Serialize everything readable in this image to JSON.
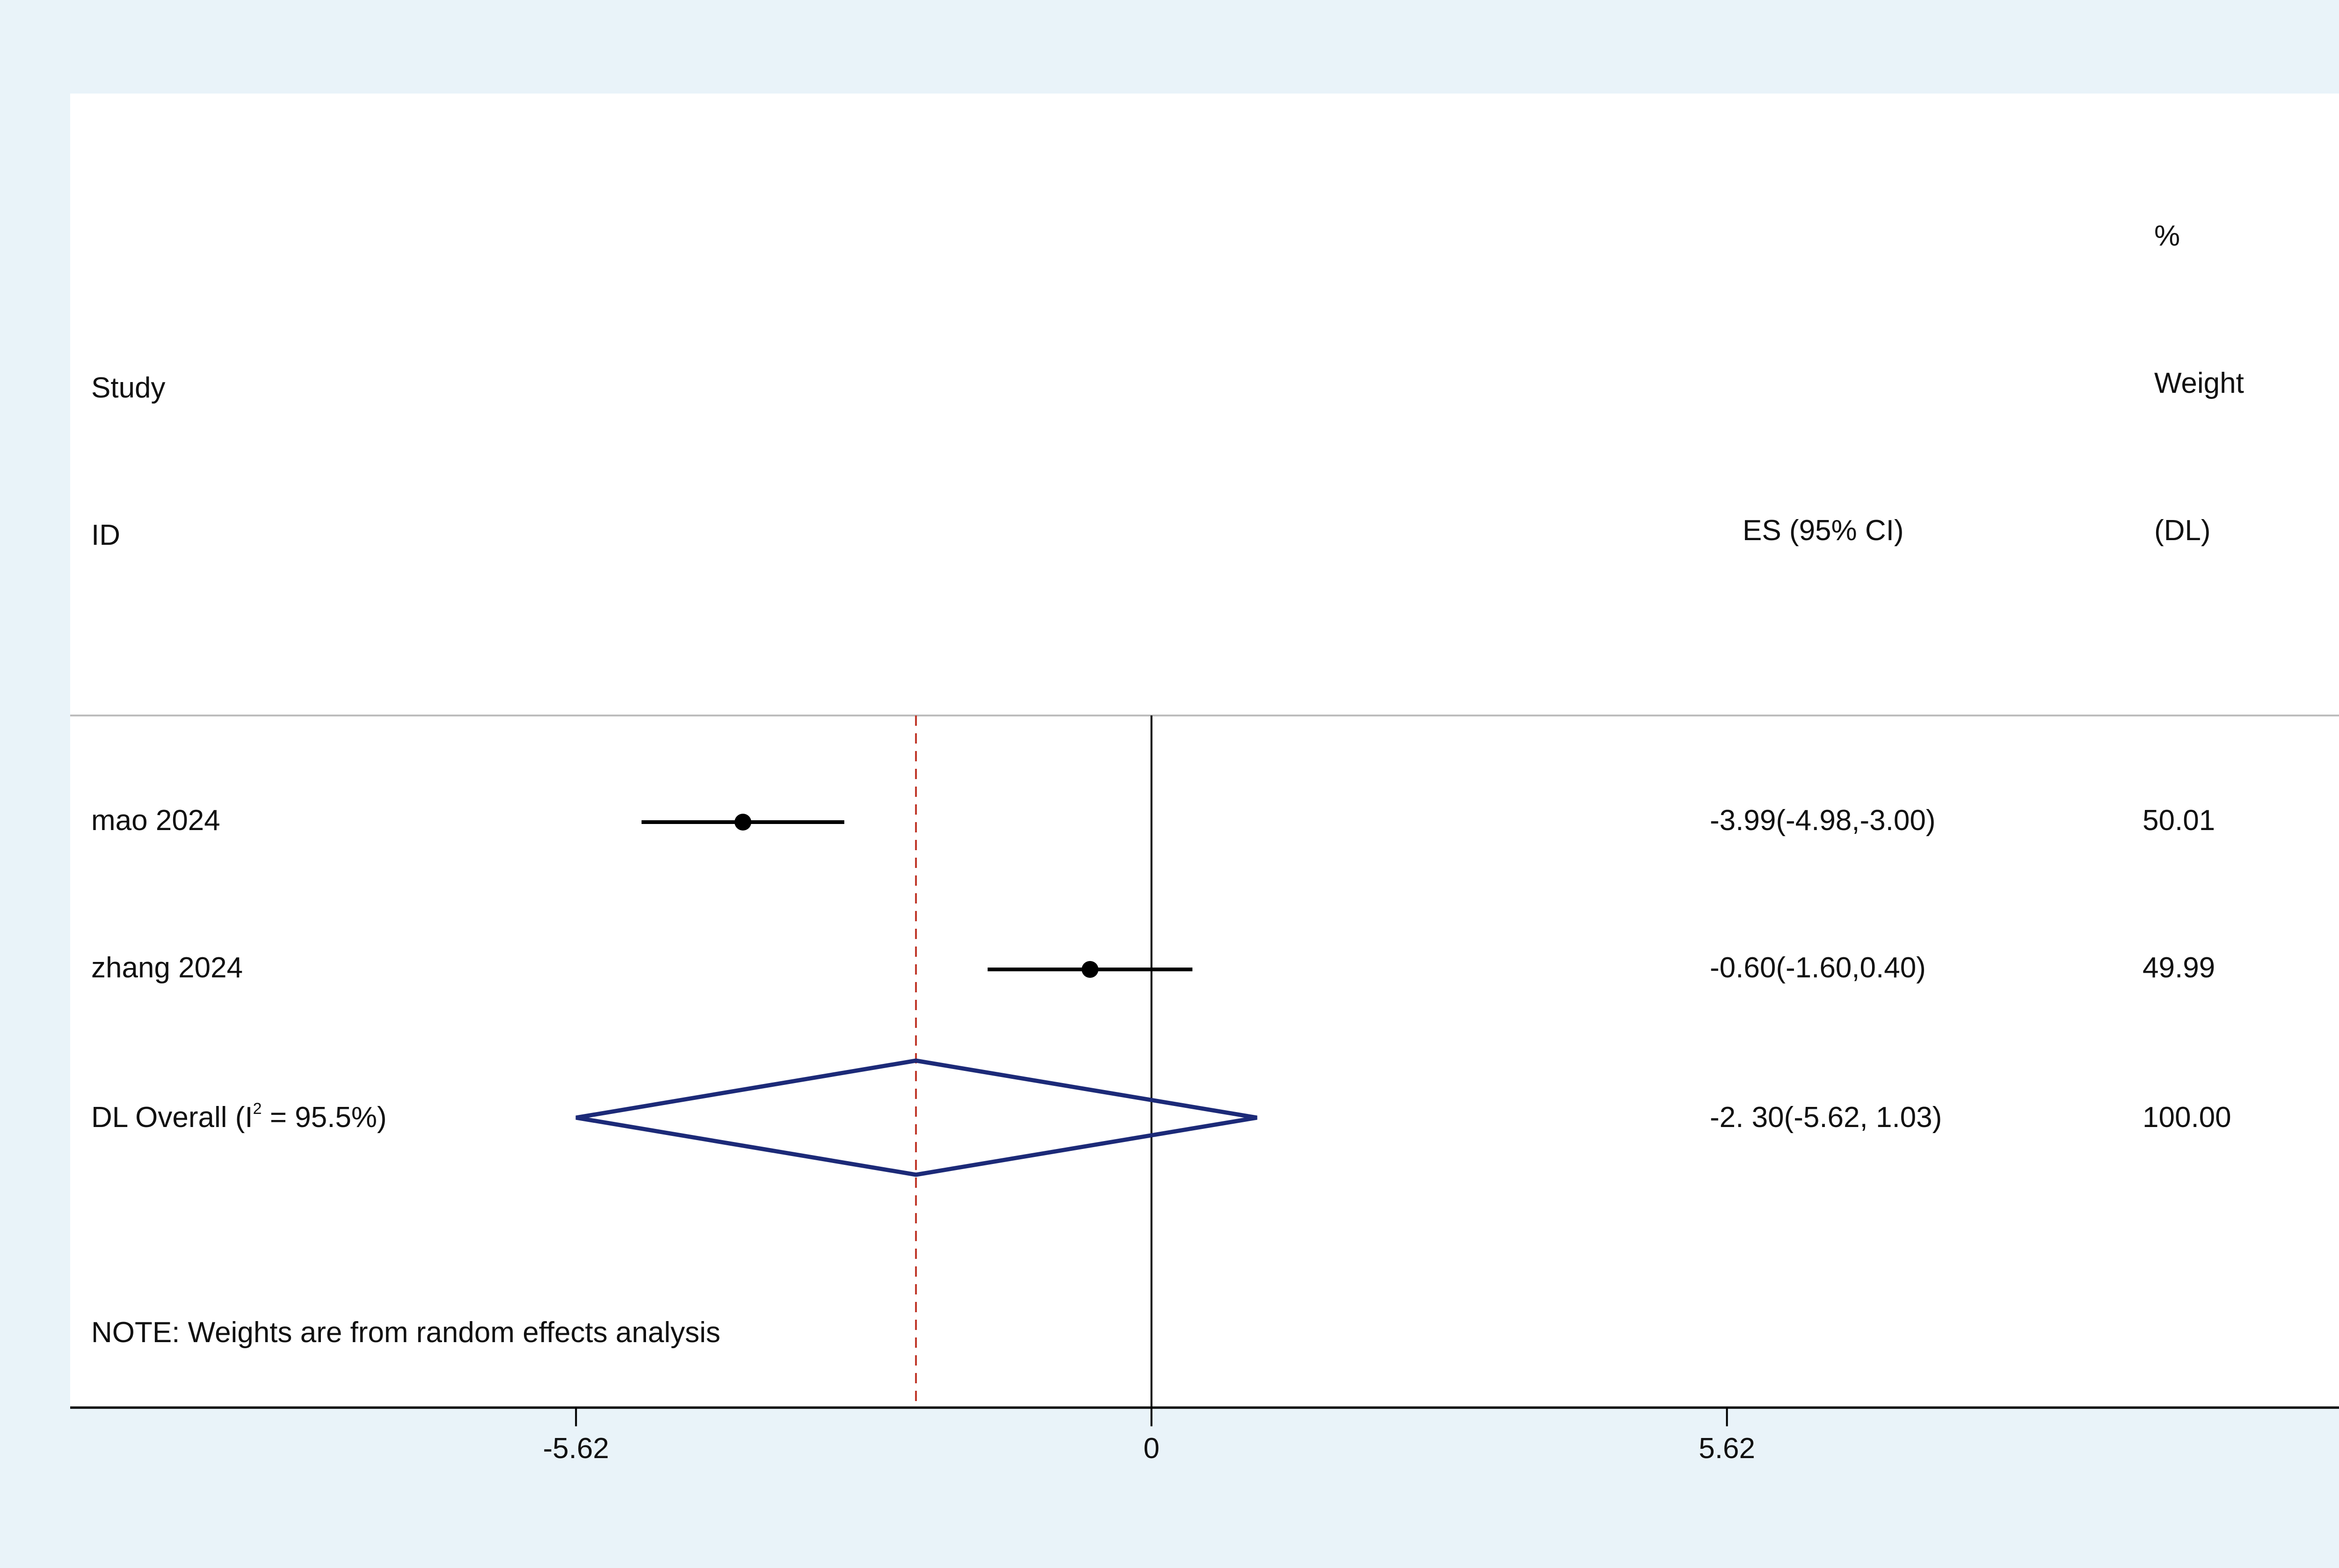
{
  "chart_data": {
    "type": "forest",
    "headers": {
      "study": [
        "Study",
        "ID"
      ],
      "es": "ES (95% CI)",
      "weight": [
        "%",
        "Weight",
        "(DL)"
      ]
    },
    "studies": [
      {
        "label": "mao 2024",
        "es": -3.99,
        "lower": -4.98,
        "upper": -3.0,
        "es_text": "-3.99(-4.98,-3.00)",
        "weight": "50.01"
      },
      {
        "label": "zhang 2024",
        "es": -0.6,
        "lower": -1.6,
        "upper": 0.4,
        "es_text": "-0.60(-1.60,0.40)",
        "weight": "49.99"
      }
    ],
    "overall": {
      "label_prefix": "DL Overall (I",
      "label_sup": "2",
      "label_suffix": " = 95.5%)",
      "es": -2.3,
      "lower": -5.62,
      "upper": 1.03,
      "es_text": "-2. 30(-5.62, 1.03)",
      "weight": "100.00"
    },
    "note": "NOTE: Weights are from random effects analysis",
    "x_ticks": [
      -5.62,
      0,
      5.62
    ],
    "x_tick_labels": [
      "-5.62",
      "0",
      "5.62"
    ],
    "xlim": [
      -10.56,
      11.94
    ],
    "null_line": 0,
    "colors": {
      "diamond": "#1c2a78",
      "overall_line": "#c0392b",
      "marker": "#000000",
      "panel": "#ffffff",
      "background": "#e9f3f9"
    }
  }
}
